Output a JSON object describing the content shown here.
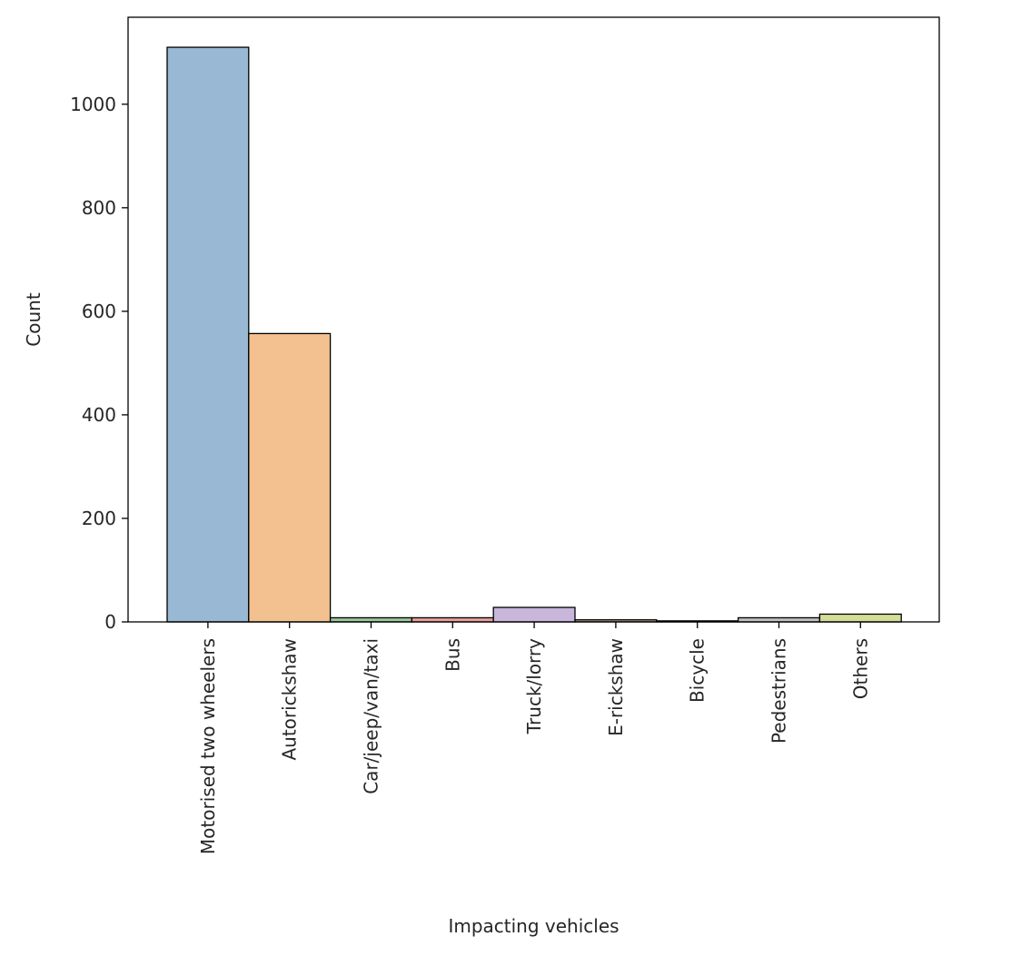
{
  "chart_data": {
    "type": "bar",
    "title": "",
    "xlabel": "Impacting vehicles",
    "ylabel": "Count",
    "categories": [
      "Motorised two wheelers",
      "Autorickshaw",
      "Car/jeep/van/taxi",
      "Bus",
      "Truck/lorry",
      "E-rickshaw",
      "Bicycle",
      "Pedestrians",
      "Others"
    ],
    "values": [
      1110,
      557,
      8,
      8,
      28,
      4,
      2,
      8,
      15
    ],
    "colors": [
      "#98b8d4",
      "#f3c18f",
      "#9bc79a",
      "#e89e9c",
      "#c8b7db",
      "#c5a69e",
      "#eab8dd",
      "#bfbfbf",
      "#d4dc98"
    ],
    "ylim": [
      0,
      1168
    ],
    "yticks": [
      0,
      200,
      400,
      600,
      800,
      1000
    ],
    "grid": false,
    "legend": "none"
  }
}
